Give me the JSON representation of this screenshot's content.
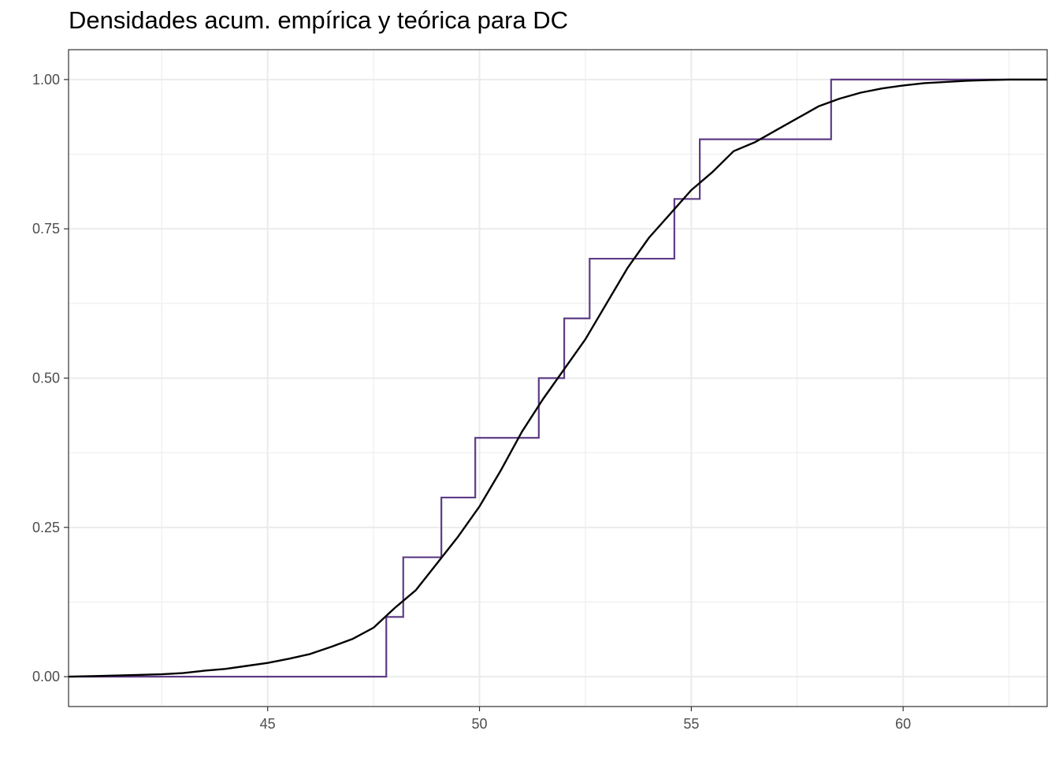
{
  "chart_data": {
    "type": "line",
    "title": "Densidades acum. empírica y teórica para DC",
    "xlabel": "",
    "ylabel": "",
    "xlim": [
      40.3,
      63.4
    ],
    "ylim": [
      -0.05,
      1.05
    ],
    "x_ticks": [
      "45",
      "50",
      "55",
      "60"
    ],
    "x_tick_values": [
      45,
      50,
      55,
      60
    ],
    "x_minor_values": [
      42.5,
      47.5,
      52.5,
      57.5,
      62.5
    ],
    "y_ticks": [
      "0.00",
      "0.25",
      "0.50",
      "0.75",
      "1.00"
    ],
    "y_tick_values": [
      0,
      0.25,
      0.5,
      0.75,
      1
    ],
    "y_minor_values": [
      0.125,
      0.375,
      0.625,
      0.875
    ],
    "grid": true,
    "colors": {
      "empirical": "#5e3c85",
      "theoretical": "#000000",
      "grid": "#ebebeb",
      "border": "#333333"
    },
    "series": [
      {
        "kind": "step",
        "x": [
          40.3,
          47.8,
          48.2,
          49.1,
          49.9,
          51.4,
          52.0,
          52.6,
          54.6,
          55.2,
          58.3,
          63.4
        ],
        "y": [
          0,
          0.1,
          0.2,
          0.3,
          0.4,
          0.5,
          0.6,
          0.7,
          0.8,
          0.9,
          1.0,
          1.0
        ]
      },
      {
        "kind": "curve",
        "x": [
          40.3,
          41.5,
          42.5,
          43.0,
          43.5,
          44.0,
          44.5,
          45.0,
          45.5,
          46.0,
          46.5,
          47.0,
          47.5,
          48.0,
          48.5,
          49.0,
          49.5,
          50.0,
          50.5,
          51.0,
          51.5,
          52.0,
          52.5,
          53.0,
          53.5,
          54.0,
          54.5,
          55.0,
          55.5,
          56.0,
          56.5,
          57.0,
          57.5,
          58.0,
          58.5,
          59.0,
          59.5,
          60.0,
          60.5,
          61.0,
          61.5,
          62.0,
          62.5,
          63.4
        ],
        "y": [
          0.0,
          0.002,
          0.004,
          0.006,
          0.01,
          0.013,
          0.018,
          0.023,
          0.03,
          0.038,
          0.05,
          0.063,
          0.082,
          0.115,
          0.145,
          0.19,
          0.235,
          0.285,
          0.345,
          0.41,
          0.465,
          0.515,
          0.565,
          0.625,
          0.685,
          0.735,
          0.775,
          0.815,
          0.845,
          0.88,
          0.895,
          0.915,
          0.935,
          0.955,
          0.968,
          0.978,
          0.985,
          0.99,
          0.994,
          0.996,
          0.998,
          0.999,
          1.0,
          1.0
        ]
      }
    ]
  }
}
